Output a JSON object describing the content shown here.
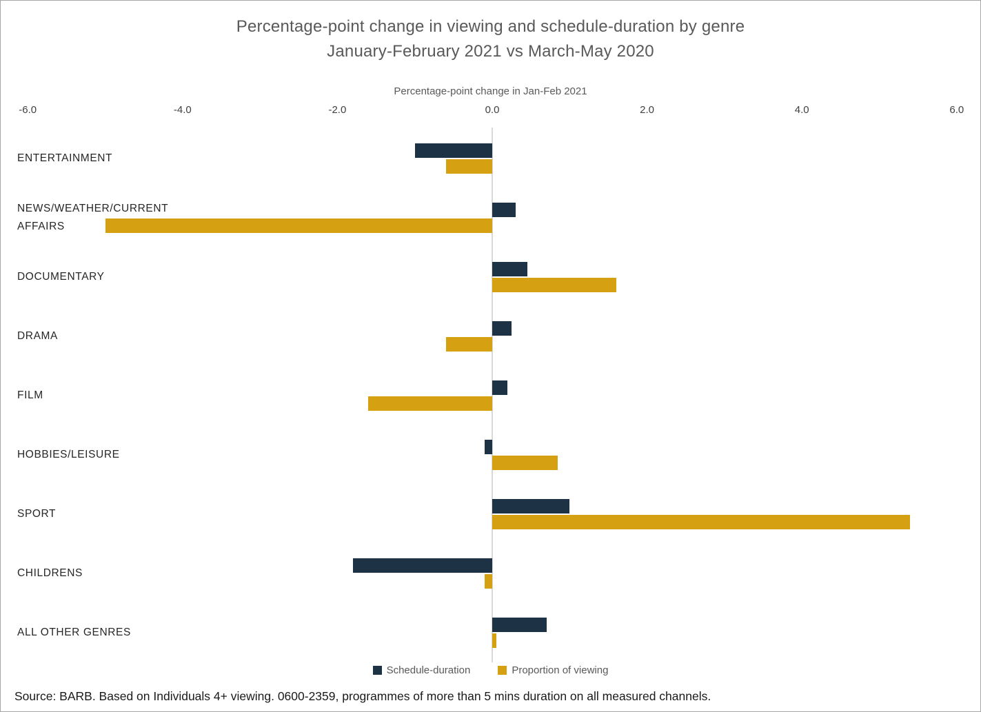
{
  "title": {
    "line1": "Percentage-point change in viewing and schedule-duration by genre",
    "line2": "January-February 2021 vs March-May 2020"
  },
  "axis": {
    "label": "Percentage-point change in Jan-Feb 2021",
    "ticks": [
      {
        "value": -6,
        "label": "-6.0"
      },
      {
        "value": -4,
        "label": "-4.0"
      },
      {
        "value": -2,
        "label": "-2.0"
      },
      {
        "value": 0,
        "label": "0.0"
      },
      {
        "value": 2,
        "label": "2.0"
      },
      {
        "value": 4,
        "label": "4.0"
      },
      {
        "value": 6,
        "label": "6.0"
      }
    ]
  },
  "chart_data": {
    "type": "bar",
    "orientation": "horizontal",
    "title": "Percentage-point change in viewing and schedule-duration by genre January-February 2021 vs March-May 2020",
    "xlabel": "Percentage-point change in Jan-Feb 2021",
    "xlim": [
      -6.0,
      6.0
    ],
    "x_tick_values": [
      -6.0,
      -4.0,
      -2.0,
      0.0,
      2.0,
      4.0,
      6.0
    ],
    "grid": "zero-line-only",
    "legend_position": "bottom",
    "categories": [
      "ENTERTAINMENT",
      "NEWS/WEATHER/CURRENT AFFAIRS",
      "DOCUMENTARY",
      "DRAMA",
      "FILM",
      "HOBBIES/LEISURE",
      "SPORT",
      "CHILDRENS",
      "ALL OTHER GENRES"
    ],
    "series": [
      {
        "name": "Schedule-duration",
        "color": "#1d3345",
        "values": [
          -1.0,
          0.3,
          0.45,
          0.25,
          0.2,
          -0.1,
          1.0,
          -1.8,
          0.7
        ]
      },
      {
        "name": "Proportion of viewing",
        "color": "#d5a011",
        "values": [
          -0.6,
          -5.0,
          1.6,
          -0.6,
          -1.6,
          0.85,
          5.4,
          -0.1,
          0.05
        ]
      }
    ]
  },
  "legend": {
    "items": [
      {
        "label": "Schedule-duration",
        "color": "#1d3345"
      },
      {
        "label": "Proportion of viewing",
        "color": "#d5a011"
      }
    ]
  },
  "source": "Source: BARB. Based on Individuals 4+ viewing. 0600-2359, programmes of more than 5 mins duration on all measured channels."
}
